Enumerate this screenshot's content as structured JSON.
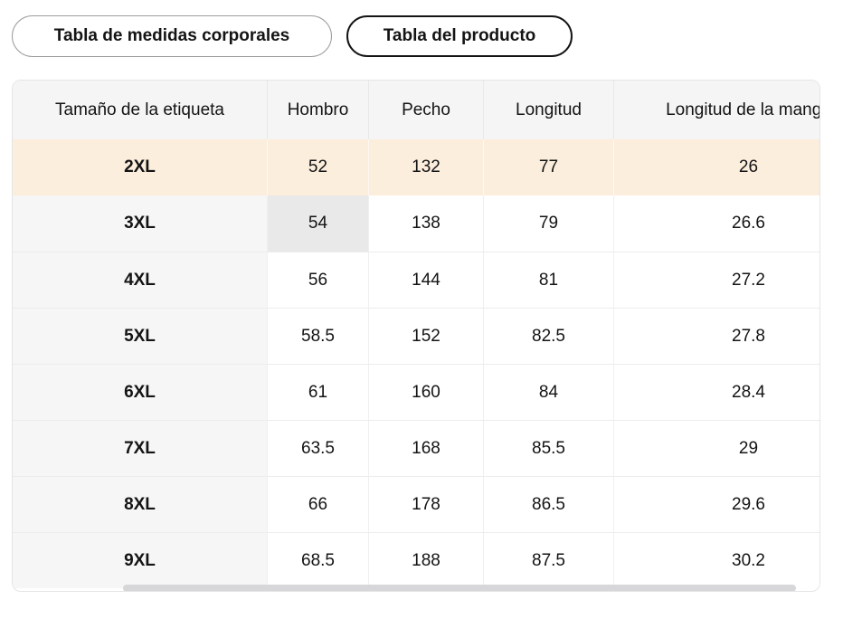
{
  "tabs": [
    {
      "label": "Tabla de medidas corporales",
      "selected": false
    },
    {
      "label": "Tabla del producto",
      "selected": true
    }
  ],
  "table": {
    "headers": {
      "size": "Tamaño de la etiqueta",
      "shoulder": "Hombro",
      "chest": "Pecho",
      "length": "Longitud",
      "sleeve": "Longitud de la manga"
    },
    "rows": [
      {
        "size": "2XL",
        "shoulder": "52",
        "chest": "132",
        "length": "77",
        "sleeve": "26",
        "highlighted": true
      },
      {
        "size": "3XL",
        "shoulder": "54",
        "chest": "138",
        "length": "79",
        "sleeve": "26.6",
        "selected_cell": "shoulder"
      },
      {
        "size": "4XL",
        "shoulder": "56",
        "chest": "144",
        "length": "81",
        "sleeve": "27.2"
      },
      {
        "size": "5XL",
        "shoulder": "58.5",
        "chest": "152",
        "length": "82.5",
        "sleeve": "27.8"
      },
      {
        "size": "6XL",
        "shoulder": "61",
        "chest": "160",
        "length": "84",
        "sleeve": "28.4"
      },
      {
        "size": "7XL",
        "shoulder": "63.5",
        "chest": "168",
        "length": "85.5",
        "sleeve": "29"
      },
      {
        "size": "8XL",
        "shoulder": "66",
        "chest": "178",
        "length": "86.5",
        "sleeve": "29.6"
      },
      {
        "size": "9XL",
        "shoulder": "68.5",
        "chest": "188",
        "length": "87.5",
        "sleeve": "30.2"
      }
    ]
  },
  "colors": {
    "highlight_row_bg": "#fceedd",
    "selected_cell_bg": "#e9e9ea",
    "header_bg": "#f5f5f6",
    "size_column_bg": "#f6f6f7",
    "tab_selected_border": "#141414",
    "tab_unselected_border": "#9c9c9c",
    "divider": "#ececec",
    "scrollbar_thumb": "#d7d7d9",
    "text": "#141414"
  }
}
